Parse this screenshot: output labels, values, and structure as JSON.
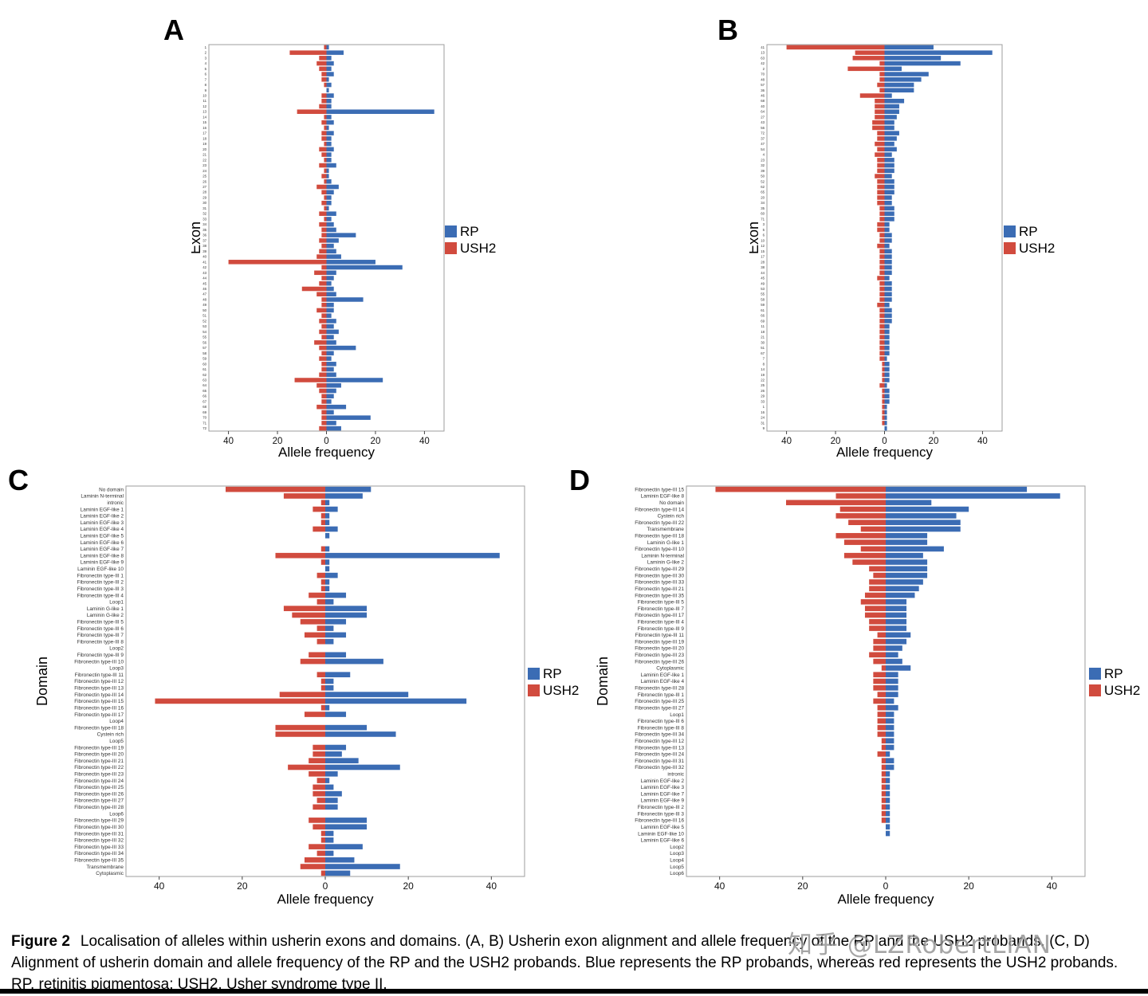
{
  "caption": {
    "label": "Figure 2",
    "text": "Localisation of alleles within usherin exons and domains. (A, B) Usherin exon alignment and allele frequency of the RP and the USH2 probands. (C, D) Alignment of usherin domain and allele frequency of the RP and the USH2 probands. Blue represents the RP probands, whereas red represents the USH2 probands. RP, retinitis pigmentosa; USH2, Usher syndrome type II."
  },
  "watermark": {
    "text": "知乎 @LZRobertLIAN"
  },
  "legend": {
    "rp": "RP",
    "ush2": "USH2"
  },
  "colors": {
    "rp": "#3b6cb4",
    "ush2": "#d14b3e"
  },
  "chart_data": [
    {
      "id": "A",
      "letter": "A",
      "type": "bar",
      "variant": "diverging-horizontal",
      "ylabel": "Exon",
      "xlabel": "Allele frequency",
      "xlim": [
        -48,
        48
      ],
      "xtick_values": [
        -40,
        -20,
        0,
        20,
        40
      ],
      "xtick_labels": [
        "40",
        "20",
        "0",
        "20",
        "40"
      ],
      "legend_position": "right",
      "categories": [
        "1",
        "2",
        "3",
        "4",
        "5",
        "6",
        "7",
        "8",
        "9",
        "10",
        "11",
        "12",
        "13",
        "14",
        "15",
        "16",
        "17",
        "18",
        "19",
        "20",
        "21",
        "22",
        "23",
        "24",
        "25",
        "26",
        "27",
        "28",
        "29",
        "30",
        "31",
        "32",
        "33",
        "34",
        "35",
        "36",
        "37",
        "38",
        "39",
        "40",
        "41",
        "42",
        "43",
        "44",
        "45",
        "46",
        "47",
        "48",
        "49",
        "50",
        "51",
        "52",
        "53",
        "54",
        "55",
        "56",
        "57",
        "58",
        "59",
        "60",
        "61",
        "62",
        "63",
        "64",
        "65",
        "66",
        "67",
        "68",
        "69",
        "70",
        "71",
        "72"
      ],
      "series": [
        {
          "name": "RP",
          "direction": "right",
          "values": [
            1,
            7,
            2,
            3,
            2,
            3,
            1,
            2,
            1,
            3,
            2,
            2,
            44,
            2,
            3,
            1,
            3,
            2,
            2,
            3,
            2,
            2,
            4,
            1,
            1,
            2,
            5,
            3,
            2,
            2,
            1,
            4,
            2,
            3,
            4,
            12,
            5,
            3,
            4,
            6,
            20,
            31,
            4,
            3,
            2,
            3,
            4,
            15,
            3,
            3,
            2,
            4,
            3,
            5,
            3,
            4,
            12,
            3,
            2,
            4,
            3,
            4,
            23,
            6,
            4,
            3,
            2,
            8,
            3,
            18,
            4,
            6
          ]
        },
        {
          "name": "USH2",
          "direction": "left",
          "values": [
            1,
            15,
            3,
            4,
            3,
            2,
            2,
            1,
            0,
            2,
            2,
            3,
            12,
            1,
            2,
            1,
            2,
            2,
            1,
            3,
            2,
            1,
            3,
            1,
            2,
            1,
            4,
            2,
            1,
            2,
            1,
            3,
            1,
            3,
            2,
            2,
            3,
            2,
            3,
            4,
            40,
            2,
            5,
            2,
            3,
            10,
            4,
            2,
            2,
            4,
            2,
            3,
            2,
            3,
            2,
            5,
            3,
            2,
            3,
            2,
            2,
            3,
            13,
            4,
            3,
            2,
            2,
            4,
            2,
            2,
            2,
            3
          ]
        }
      ]
    },
    {
      "id": "B",
      "letter": "B",
      "type": "bar",
      "variant": "diverging-horizontal",
      "ylabel": "Exon",
      "xlabel": "Allele frequency",
      "xlim": [
        -48,
        48
      ],
      "xtick_values": [
        -40,
        -20,
        0,
        20,
        40
      ],
      "xtick_labels": [
        "40",
        "20",
        "0",
        "20",
        "40"
      ],
      "legend_position": "right",
      "derived_from": "A",
      "sort": "total_desc"
    },
    {
      "id": "C",
      "letter": "C",
      "type": "bar",
      "variant": "diverging-horizontal",
      "ylabel": "Domain",
      "xlabel": "Allele frequency",
      "xlim": [
        -48,
        48
      ],
      "xtick_values": [
        -40,
        -20,
        0,
        20,
        40
      ],
      "xtick_labels": [
        "40",
        "20",
        "0",
        "20",
        "40"
      ],
      "legend_position": "right",
      "categories": [
        "No domain",
        "Laminin N-terminal",
        "intronic",
        "Laminin EGF-like 1",
        "Laminin EGF-like 2",
        "Laminin EGF-like 3",
        "Laminin EGF-like 4",
        "Laminin EGF-like 5",
        "Laminin EGF-like 6",
        "Laminin EGF-like 7",
        "Laminin EGF-like 8",
        "Laminin EGF-like 9",
        "Laminin EGF-like 10",
        "Fibronectin type-III 1",
        "Fibronectin type-III 2",
        "Fibronectin type-III 3",
        "Fibronectin type-III 4",
        "Loop1",
        "Laminin G-like 1",
        "Laminin G-like 2",
        "Fibronectin type-III 5",
        "Fibronectin type-III 6",
        "Fibronectin type-III 7",
        "Fibronectin type-III 8",
        "Loop2",
        "Fibronectin type-III 9",
        "Fibronectin type-III 10",
        "Loop3",
        "Fibronectin type-III 11",
        "Fibronectin type-III 12",
        "Fibronectin type-III 13",
        "Fibronectin type-III 14",
        "Fibronectin type-III 15",
        "Fibronectin type-III 16",
        "Fibronectin type-III 17",
        "Loop4",
        "Fibronectin type-III 18",
        "Cystein rich",
        "Loop5",
        "Fibronectin type-III 19",
        "Fibronectin type-III 20",
        "Fibronectin type-III 21",
        "Fibronectin type-III 22",
        "Fibronectin type-III 23",
        "Fibronectin type-III 24",
        "Fibronectin type-III 25",
        "Fibronectin type-III 26",
        "Fibronectin type-III 27",
        "Fibronectin type-III 28",
        "Loop6",
        "Fibronectin type-III 29",
        "Fibronectin type-III 30",
        "Fibronectin type-III 31",
        "Fibronectin type-III 32",
        "Fibronectin type-III 33",
        "Fibronectin type-III 34",
        "Fibronectin type-III 35",
        "Transmembrane",
        "Cytoplasmic"
      ],
      "series": [
        {
          "name": "RP",
          "direction": "right",
          "values": [
            11,
            9,
            1,
            3,
            1,
            1,
            3,
            1,
            0,
            1,
            42,
            1,
            1,
            3,
            1,
            1,
            5,
            2,
            10,
            10,
            5,
            2,
            5,
            2,
            0,
            5,
            14,
            0,
            6,
            2,
            2,
            20,
            34,
            1,
            5,
            0,
            10,
            17,
            0,
            5,
            4,
            8,
            18,
            3,
            1,
            2,
            4,
            3,
            3,
            0,
            10,
            10,
            2,
            2,
            9,
            2,
            7,
            18,
            6
          ]
        },
        {
          "name": "USH2",
          "direction": "left",
          "values": [
            24,
            10,
            1,
            3,
            1,
            1,
            3,
            0,
            0,
            1,
            12,
            1,
            0,
            2,
            1,
            1,
            4,
            2,
            10,
            8,
            6,
            2,
            5,
            2,
            0,
            4,
            6,
            0,
            2,
            1,
            1,
            11,
            41,
            1,
            5,
            0,
            12,
            12,
            0,
            3,
            3,
            4,
            9,
            4,
            2,
            3,
            3,
            2,
            3,
            0,
            4,
            3,
            1,
            1,
            4,
            2,
            5,
            6,
            1
          ]
        }
      ]
    },
    {
      "id": "D",
      "letter": "D",
      "type": "bar",
      "variant": "diverging-horizontal",
      "ylabel": "Domain",
      "xlabel": "Allele frequency",
      "xlim": [
        -48,
        48
      ],
      "xtick_values": [
        -40,
        -20,
        0,
        20,
        40
      ],
      "xtick_labels": [
        "40",
        "20",
        "0",
        "20",
        "40"
      ],
      "legend_position": "right",
      "derived_from": "C",
      "sort": "total_desc"
    }
  ]
}
